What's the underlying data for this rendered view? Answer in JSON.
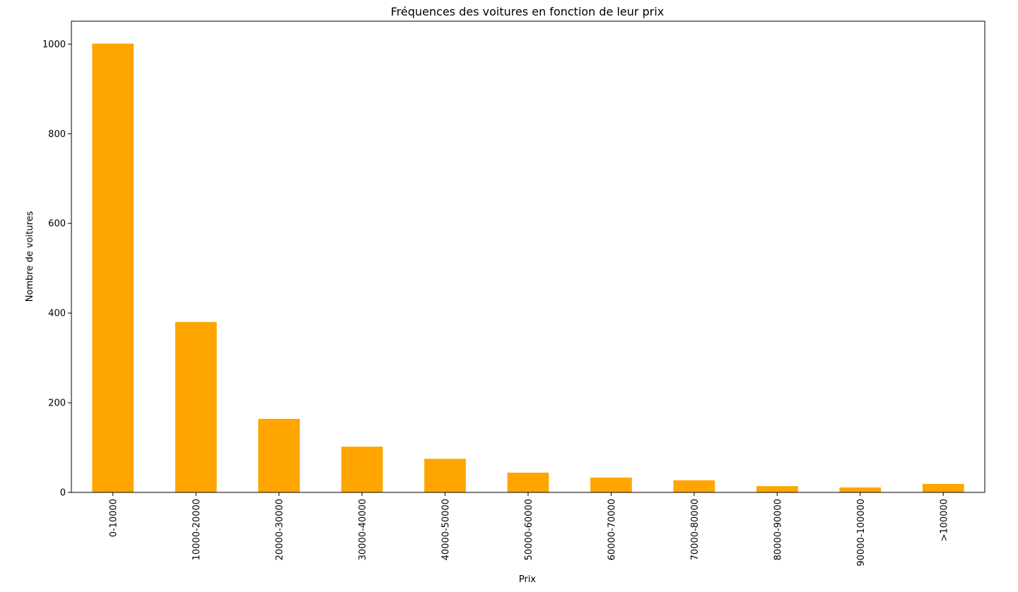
{
  "chart_data": {
    "type": "bar",
    "title": "Fréquences des voitures en fonction de leur prix",
    "xlabel": "Prix",
    "ylabel": "Nombre de voitures",
    "categories": [
      "0-10000",
      "10000-20000",
      "20000-30000",
      "30000-40000",
      "40000-50000",
      "50000-60000",
      "60000-70000",
      "70000-80000",
      "80000-90000",
      "90000-100000",
      ">100000"
    ],
    "values": [
      1001,
      380,
      164,
      102,
      75,
      44,
      33,
      27,
      14,
      11,
      19
    ],
    "ylim": [
      0,
      1051
    ],
    "yticks": [
      0,
      200,
      400,
      600,
      800,
      1000
    ],
    "bar_color": "#ffa500",
    "grid": false,
    "legend": "none"
  }
}
